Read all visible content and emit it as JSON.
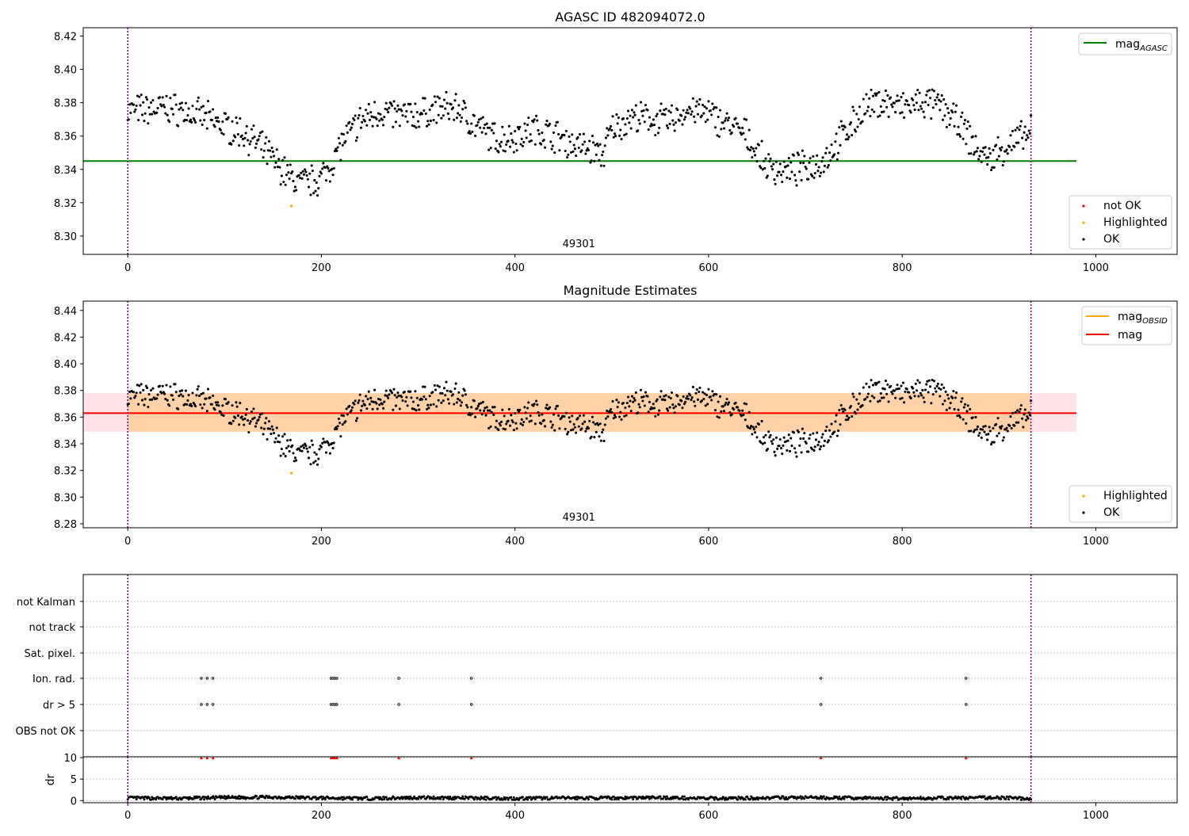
{
  "chart_data": [
    {
      "type": "scatter",
      "title": "AGASC ID 482094072.0",
      "xlim": [
        -46,
        1084
      ],
      "ylim": [
        8.289,
        8.425
      ],
      "xticks": [
        0,
        200,
        400,
        600,
        800,
        1000
      ],
      "yticks": [
        8.3,
        8.32,
        8.34,
        8.36,
        8.38,
        8.4,
        8.42
      ],
      "ytick_labels": [
        "8.30",
        "8.32",
        "8.34",
        "8.36",
        "8.38",
        "8.40",
        "8.42"
      ],
      "grid": false,
      "vlines": [
        0,
        933
      ],
      "vline_color": "#800080",
      "obsid_label": "49301",
      "obsid_label_x": 466,
      "hlines": [
        {
          "name": "mag_AGASC",
          "y": 8.345,
          "x0": -46,
          "x1": 980,
          "color": "#008000"
        }
      ],
      "series": [
        {
          "name": "not OK",
          "color": "#ff0000",
          "x": [],
          "y": []
        },
        {
          "name": "Highlighted",
          "color": "#ffa500",
          "x": [
            169
          ],
          "y": [
            8.318
          ]
        },
        {
          "name": "OK",
          "color": "#000000",
          "x": [
            0,
            20,
            40,
            60,
            80,
            100,
            120,
            140,
            150,
            160,
            170,
            180,
            190,
            200,
            210,
            220,
            240,
            260,
            280,
            300,
            320,
            340,
            360,
            380,
            400,
            420,
            440,
            460,
            480,
            490,
            500,
            520,
            540,
            560,
            580,
            600,
            620,
            640,
            650,
            660,
            680,
            700,
            720,
            740,
            760,
            780,
            800,
            820,
            840,
            860,
            870,
            880,
            890,
            900,
            920,
            933
          ],
          "y": [
            8.375,
            8.376,
            8.377,
            8.375,
            8.371,
            8.366,
            8.362,
            8.352,
            8.346,
            8.34,
            8.334,
            8.332,
            8.333,
            8.335,
            8.343,
            8.355,
            8.369,
            8.375,
            8.372,
            8.373,
            8.376,
            8.377,
            8.366,
            8.358,
            8.36,
            8.364,
            8.361,
            8.355,
            8.352,
            8.348,
            8.364,
            8.371,
            8.37,
            8.369,
            8.376,
            8.373,
            8.367,
            8.36,
            8.35,
            8.342,
            8.339,
            8.341,
            8.346,
            8.361,
            8.376,
            8.381,
            8.377,
            8.38,
            8.378,
            8.366,
            8.358,
            8.35,
            8.346,
            8.351,
            8.358,
            8.362
          ]
        }
      ],
      "legend": {
        "line_entries": [
          {
            "text": "mag",
            "sub": "AGASC",
            "color": "#008000"
          }
        ]
      }
    },
    {
      "type": "scatter",
      "title": "Magnitude Estimates",
      "xlim": [
        -46,
        1084
      ],
      "ylim": [
        8.277,
        8.447
      ],
      "xticks": [
        0,
        200,
        400,
        600,
        800,
        1000
      ],
      "yticks": [
        8.28,
        8.3,
        8.32,
        8.34,
        8.36,
        8.38,
        8.4,
        8.42,
        8.44
      ],
      "ytick_labels": [
        "8.28",
        "8.30",
        "8.32",
        "8.34",
        "8.36",
        "8.38",
        "8.40",
        "8.42",
        "8.44"
      ],
      "grid": false,
      "vlines": [
        0,
        933
      ],
      "vline_color": "#800080",
      "obsid_label": "49301",
      "obsid_label_x": 466,
      "hlines": [
        {
          "name": "mag_OBSID",
          "y": 8.363,
          "x0": 0,
          "x1": 933,
          "color": "#ffa500"
        },
        {
          "name": "mag",
          "y": 8.363,
          "x0": -46,
          "x1": 980,
          "color": "#ff0000"
        }
      ],
      "bands": [
        {
          "name": "mag range",
          "y0": 8.349,
          "y1": 8.378,
          "x0": -46,
          "x1": 980,
          "color": "#ffc0cb"
        },
        {
          "name": "mag_OBSID range",
          "y0": 8.349,
          "y1": 8.378,
          "x0": 0,
          "x1": 933,
          "color": "#ffa500"
        }
      ],
      "series": [
        {
          "name": "Highlighted",
          "color": "#ffa500",
          "x": [
            169
          ],
          "y": [
            8.318
          ]
        },
        {
          "name": "OK",
          "color": "#000000",
          "x": [
            0,
            20,
            40,
            60,
            80,
            100,
            120,
            140,
            150,
            160,
            170,
            180,
            190,
            200,
            210,
            220,
            240,
            260,
            280,
            300,
            320,
            340,
            360,
            380,
            400,
            420,
            440,
            460,
            480,
            490,
            500,
            520,
            540,
            560,
            580,
            600,
            620,
            640,
            650,
            660,
            680,
            700,
            720,
            740,
            760,
            780,
            800,
            820,
            840,
            860,
            870,
            880,
            890,
            900,
            920,
            933
          ],
          "y": [
            8.375,
            8.376,
            8.377,
            8.375,
            8.371,
            8.366,
            8.362,
            8.352,
            8.346,
            8.34,
            8.334,
            8.332,
            8.333,
            8.335,
            8.343,
            8.355,
            8.369,
            8.375,
            8.372,
            8.373,
            8.376,
            8.377,
            8.366,
            8.358,
            8.36,
            8.364,
            8.361,
            8.355,
            8.352,
            8.348,
            8.364,
            8.371,
            8.37,
            8.369,
            8.376,
            8.373,
            8.367,
            8.36,
            8.35,
            8.342,
            8.339,
            8.341,
            8.346,
            8.361,
            8.376,
            8.381,
            8.377,
            8.38,
            8.378,
            8.366,
            8.358,
            8.35,
            8.346,
            8.351,
            8.358,
            8.362
          ]
        }
      ],
      "legend": {
        "line_entries": [
          {
            "text": "mag",
            "sub": "OBSID",
            "color": "#ffa500"
          },
          {
            "text": "mag",
            "sub": "",
            "color": "#ff0000"
          }
        ]
      }
    },
    {
      "type": "scatter",
      "title": "",
      "xlim": [
        -46,
        1084
      ],
      "categories": [
        "OBS not OK",
        "dr > 5",
        "Ion. rad.",
        "Sat. pixel.",
        "not track",
        "not Kalman"
      ],
      "grid": true,
      "vlines": [
        0,
        933
      ],
      "vline_color": "#800080",
      "series": [
        {
          "name": "dr > 5",
          "color": "#000000",
          "x": [
            76,
            82,
            88,
            210,
            212,
            214,
            216,
            280,
            355,
            716,
            866
          ]
        },
        {
          "name": "Ion. rad.",
          "color": "#000000",
          "x": [
            76,
            82,
            88,
            210,
            212,
            214,
            216,
            280,
            355,
            716,
            866
          ]
        }
      ]
    },
    {
      "type": "scatter",
      "title": "",
      "ylabel": "dr",
      "xlim": [
        -46,
        1084
      ],
      "ylim": [
        -0.5,
        10.2
      ],
      "xticks": [
        0,
        200,
        400,
        600,
        800,
        1000
      ],
      "yticks": [
        0,
        5,
        10
      ],
      "grid": true,
      "vlines": [
        0,
        933
      ],
      "vline_color": "#800080",
      "series": [
        {
          "name": "dr > 10 (clipped)",
          "color": "#ff0000",
          "x": [
            76,
            82,
            88,
            210,
            212,
            214,
            216,
            280,
            355,
            716,
            866
          ],
          "y": [
            10,
            10,
            10,
            10,
            10,
            10,
            10,
            10,
            10,
            10,
            10
          ]
        },
        {
          "name": "dr",
          "color": "#000000",
          "x": [
            0,
            50,
            100,
            150,
            200,
            250,
            300,
            350,
            400,
            450,
            500,
            550,
            600,
            650,
            700,
            750,
            800,
            850,
            900,
            933
          ],
          "y": [
            0.6,
            0.5,
            0.7,
            0.8,
            0.6,
            0.5,
            0.7,
            0.6,
            0.5,
            0.6,
            0.6,
            0.7,
            0.5,
            0.6,
            0.7,
            0.6,
            0.5,
            0.6,
            0.7,
            0.4
          ]
        }
      ]
    }
  ],
  "legends": {
    "panel1_points": [
      {
        "label": "not OK",
        "color": "#ff0000"
      },
      {
        "label": "Highlighted",
        "color": "#ffa500"
      },
      {
        "label": "OK",
        "color": "#000000"
      }
    ],
    "panel2_points": [
      {
        "label": "Highlighted",
        "color": "#ffa500"
      },
      {
        "label": "OK",
        "color": "#000000"
      }
    ]
  }
}
